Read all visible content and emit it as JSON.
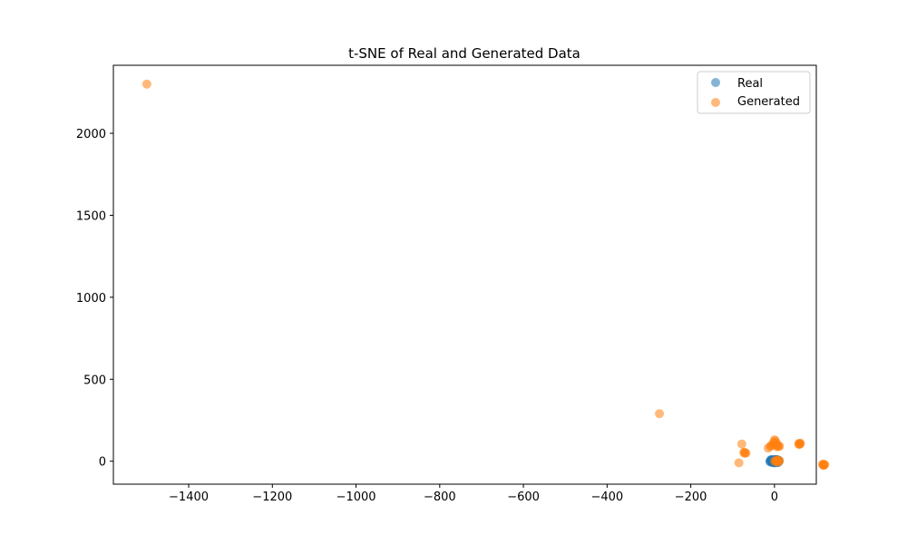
{
  "chart_data": {
    "type": "scatter",
    "title": "t-SNE of Real and Generated Data",
    "xlabel": "",
    "ylabel": "",
    "xlim": [
      -1580,
      100
    ],
    "ylim": [
      -140,
      2415
    ],
    "xticks": [
      -1400,
      -1200,
      -1000,
      -800,
      -600,
      -400,
      -200,
      0
    ],
    "xtick_labels": [
      "−1400",
      "−1200",
      "−1000",
      "−800",
      "−600",
      "−400",
      "−200",
      "0"
    ],
    "yticks": [
      0,
      500,
      1000,
      1500,
      2000
    ],
    "ytick_labels": [
      "0",
      "500",
      "1000",
      "1500",
      "2000"
    ],
    "grid": false,
    "legend_position": "top-right",
    "series": [
      {
        "name": "Real",
        "color": "#1f77b4",
        "alpha": 0.55,
        "points": [
          [
            -10,
            0
          ],
          [
            -8,
            4
          ],
          [
            -6,
            -3
          ],
          [
            -4,
            6
          ],
          [
            -3,
            -6
          ],
          [
            -2,
            2
          ],
          [
            0,
            0
          ],
          [
            1,
            -4
          ],
          [
            2,
            5
          ],
          [
            3,
            8
          ],
          [
            4,
            -2
          ],
          [
            5,
            3
          ],
          [
            6,
            -5
          ],
          [
            7,
            1
          ],
          [
            8,
            6
          ],
          [
            -7,
            -8
          ],
          [
            -5,
            9
          ],
          [
            -1,
            10
          ],
          [
            1,
            -10
          ],
          [
            3,
            -8
          ],
          [
            5,
            10
          ],
          [
            -9,
            7
          ],
          [
            -2,
            -9
          ],
          [
            6,
            9
          ],
          [
            9,
            -7
          ],
          [
            -6,
            3
          ],
          [
            0,
            7
          ],
          [
            2,
            -6
          ],
          [
            4,
            4
          ],
          [
            -4,
            -4
          ],
          [
            10,
            2
          ],
          [
            -11,
            -2
          ],
          [
            7,
            -9
          ],
          [
            -8,
            9
          ],
          [
            11,
            5
          ]
        ]
      },
      {
        "name": "Generated",
        "color": "#ff7f0e",
        "alpha": 0.55,
        "points": [
          [
            -1500,
            2300
          ],
          [
            -275,
            290
          ],
          [
            -78,
            105
          ],
          [
            -85,
            -10
          ],
          [
            -72,
            55
          ],
          [
            -70,
            48
          ],
          [
            -73,
            52
          ],
          [
            -68,
            50
          ],
          [
            -15,
            80
          ],
          [
            -10,
            90
          ],
          [
            -5,
            100
          ],
          [
            -8,
            95
          ],
          [
            0,
            130
          ],
          [
            2,
            125
          ],
          [
            -2,
            115
          ],
          [
            5,
            110
          ],
          [
            8,
            95
          ],
          [
            10,
            90
          ],
          [
            12,
            92
          ],
          [
            6,
            88
          ],
          [
            3,
            100
          ],
          [
            0,
            0
          ],
          [
            5,
            2
          ],
          [
            8,
            -3
          ],
          [
            10,
            5
          ],
          [
            12,
            0
          ],
          [
            6,
            -6
          ],
          [
            3,
            4
          ],
          [
            9,
            8
          ],
          [
            58,
            108
          ],
          [
            60,
            105
          ],
          [
            62,
            110
          ],
          [
            59,
            102
          ],
          [
            61,
            106
          ],
          [
            115,
            -20
          ],
          [
            117,
            -25
          ],
          [
            119,
            -22
          ],
          [
            116,
            -18
          ],
          [
            118,
            -24
          ],
          [
            120,
            -20
          ]
        ]
      }
    ]
  }
}
